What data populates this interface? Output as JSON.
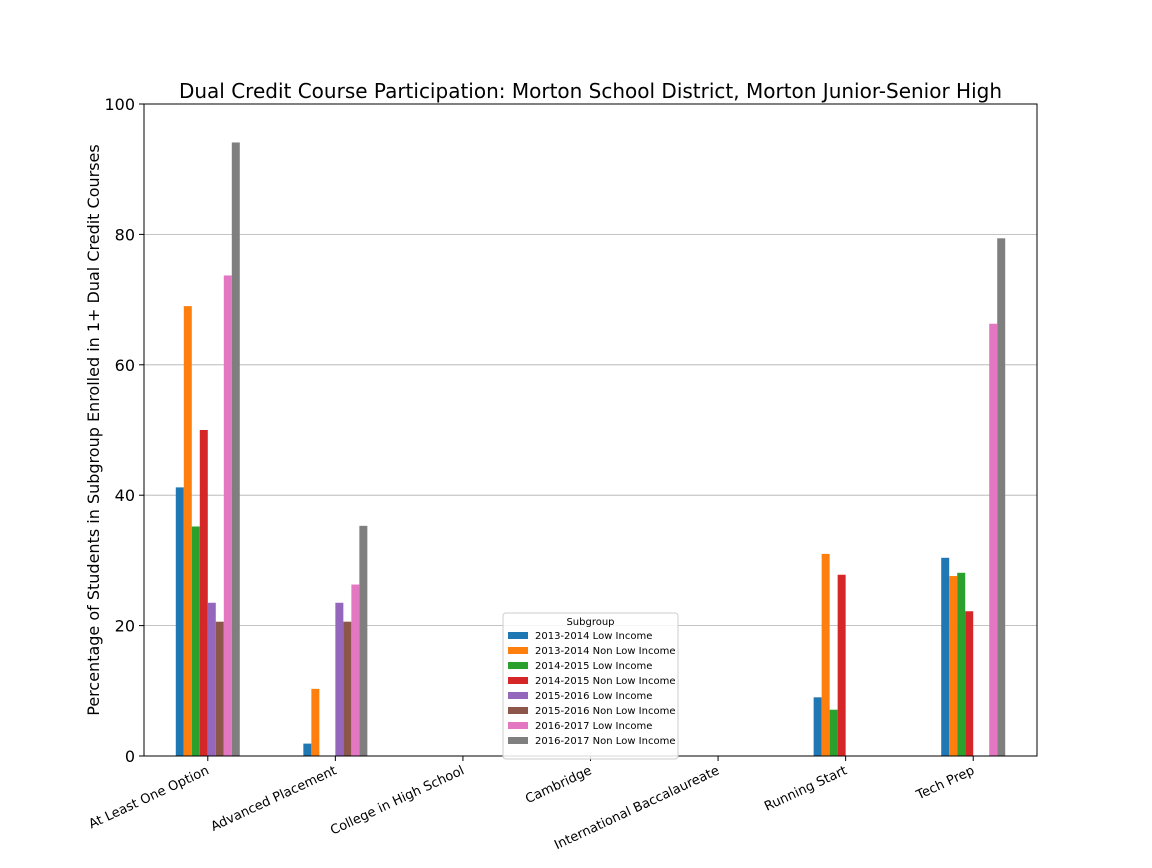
{
  "chart_data": {
    "type": "bar",
    "title": "Dual Credit Course Participation: Morton School District, Morton Junior-Senior High",
    "xlabel": "",
    "ylabel": "Percentage of Students in Subgroup Enrolled in 1+ Dual Credit Courses",
    "ylim": [
      0,
      100
    ],
    "yticks": [
      0,
      20,
      40,
      60,
      80,
      100
    ],
    "grid": "horizontal",
    "legend_title": "Subgroup",
    "legend_position": "bottom-center",
    "categories": [
      "At Least One Option",
      "Advanced Placement",
      "College in High School",
      "Cambridge",
      "International Baccalaureate",
      "Running Start",
      "Tech Prep"
    ],
    "series": [
      {
        "name": "2013-2014 Low Income",
        "color": "#1f77b4",
        "values": [
          41.2,
          1.9,
          null,
          null,
          null,
          9.0,
          30.4
        ]
      },
      {
        "name": "2013-2014 Non Low Income",
        "color": "#ff7f0e",
        "values": [
          69.0,
          10.3,
          null,
          null,
          null,
          31.0,
          27.6
        ]
      },
      {
        "name": "2014-2015 Low Income",
        "color": "#2ca02c",
        "values": [
          35.2,
          null,
          null,
          null,
          null,
          7.1,
          28.1
        ]
      },
      {
        "name": "2014-2015 Non Low Income",
        "color": "#d62728",
        "values": [
          50.0,
          null,
          null,
          null,
          null,
          27.8,
          22.2
        ]
      },
      {
        "name": "2015-2016 Low Income",
        "color": "#9467bd",
        "values": [
          23.5,
          23.5,
          null,
          null,
          null,
          null,
          null
        ]
      },
      {
        "name": "2015-2016 Non Low Income",
        "color": "#8c564b",
        "values": [
          20.6,
          20.6,
          null,
          null,
          null,
          null,
          null
        ]
      },
      {
        "name": "2016-2017 Low Income",
        "color": "#e377c2",
        "values": [
          73.7,
          26.3,
          null,
          null,
          null,
          null,
          66.3
        ]
      },
      {
        "name": "2016-2017 Non Low Income",
        "color": "#7f7f7f",
        "values": [
          94.1,
          35.3,
          null,
          null,
          null,
          null,
          79.4
        ]
      }
    ]
  }
}
